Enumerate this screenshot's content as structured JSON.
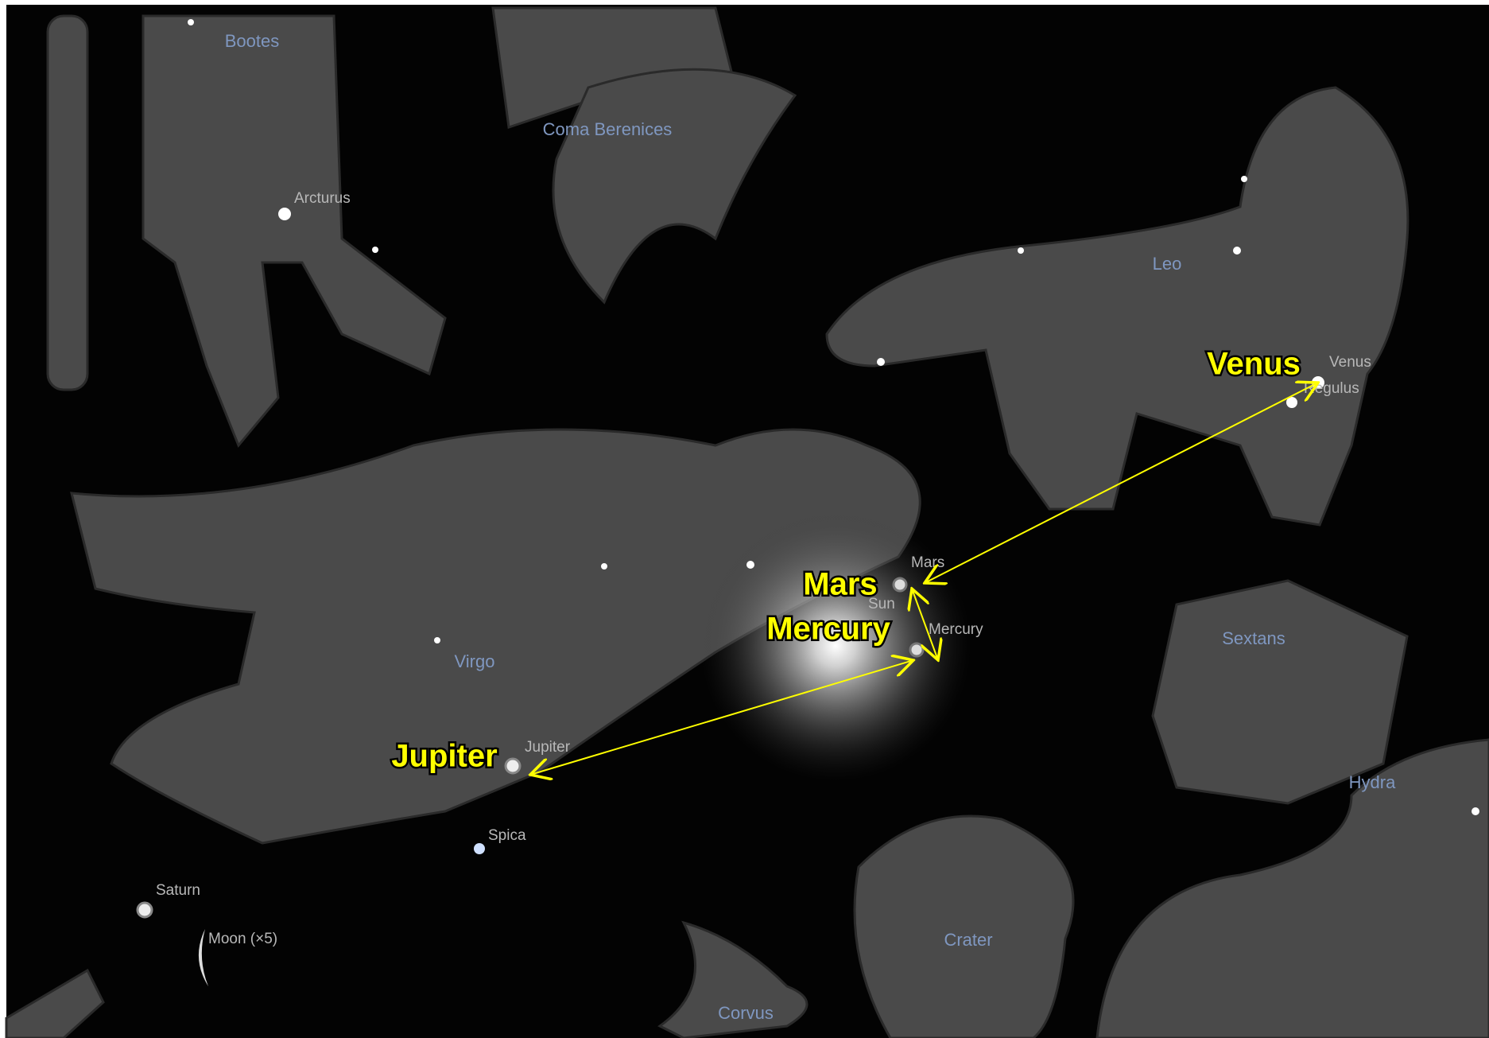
{
  "constellations": [
    "Bootes",
    "Coma Berenices",
    "Leo",
    "Virgo",
    "Sextans",
    "Hydra",
    "Crater",
    "Corvus"
  ],
  "objects": [
    "Arcturus",
    "Venus",
    "Regulus",
    "Mars",
    "Sun",
    "Mercury",
    "Jupiter",
    "Spica",
    "Saturn",
    "Moon (×5)"
  ],
  "annotations": [
    "Venus",
    "Mars",
    "Mercury",
    "Jupiter"
  ]
}
